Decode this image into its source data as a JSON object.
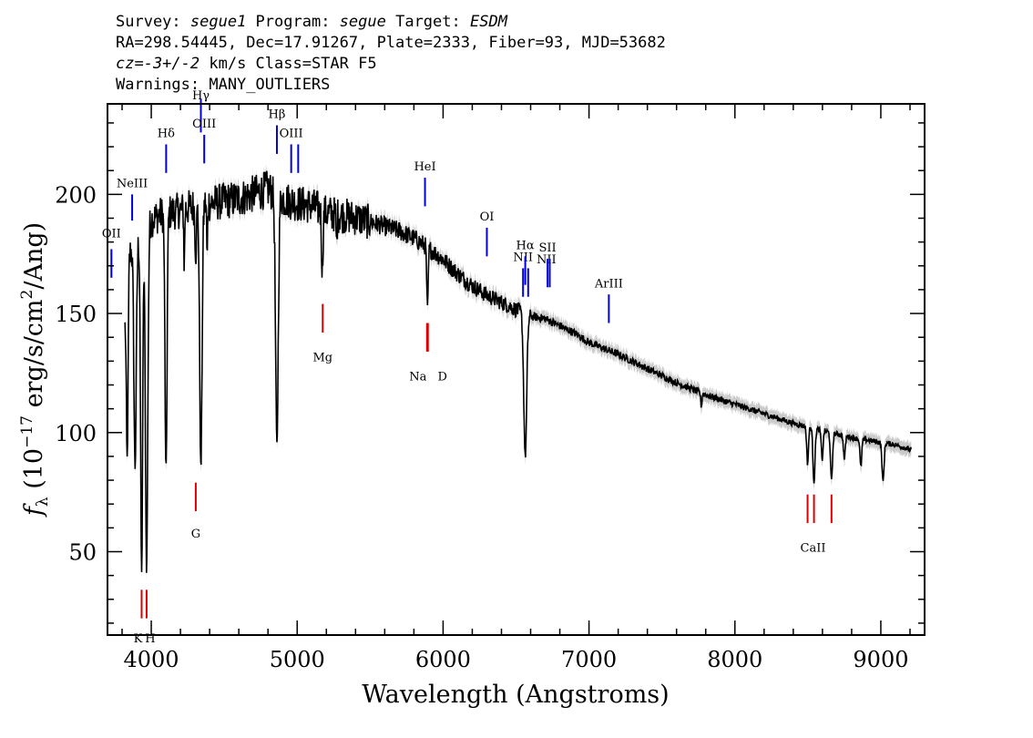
{
  "header": {
    "line1": {
      "survey_label": "Survey: ",
      "survey": "segue1",
      "program_label": " Program: ",
      "program": "segue",
      "target_label": " Target: ",
      "target": "ESDM"
    },
    "line2": "RA=298.54445, Dec=17.91267, Plate=2333, Fiber=93, MJD=53682",
    "line3": {
      "cz": "cz=-3+/-2",
      "rest": " km/s Class=STAR F5"
    },
    "line4": "Warnings: MANY_OUTLIERS"
  },
  "chart_data": {
    "type": "line",
    "xlabel": "Wavelength (Angstroms)",
    "ylabel": "f_λ (10^-17 erg/s/cm²/Ang)",
    "ylabel_parts": {
      "f": "f",
      "lambda": "λ",
      "prefix": " (10",
      "exp1": "−17",
      "mid": " erg/s/cm",
      "exp2": "2",
      "suffix": "/Ang)"
    },
    "xlim": [
      3700,
      9300
    ],
    "ylim": [
      15,
      238
    ],
    "xticks": [
      4000,
      5000,
      6000,
      7000,
      8000,
      9000
    ],
    "yticks": [
      50,
      100,
      150,
      200
    ],
    "xtick_labels": [
      "4000",
      "5000",
      "6000",
      "7000",
      "8000",
      "9000"
    ],
    "ytick_labels": [
      "50",
      "100",
      "150",
      "200"
    ],
    "continuum": [
      [
        3820,
        148
      ],
      [
        3850,
        176
      ],
      [
        3900,
        180
      ],
      [
        3950,
        188
      ],
      [
        4000,
        190
      ],
      [
        4050,
        192
      ],
      [
        4100,
        193
      ],
      [
        4200,
        194
      ],
      [
        4300,
        196
      ],
      [
        4400,
        197
      ],
      [
        4500,
        198
      ],
      [
        4600,
        199
      ],
      [
        4700,
        201
      ],
      [
        4800,
        203
      ],
      [
        4900,
        199
      ],
      [
        5000,
        197
      ],
      [
        5100,
        196
      ],
      [
        5200,
        193
      ],
      [
        5300,
        192
      ],
      [
        5400,
        191
      ],
      [
        5500,
        189
      ],
      [
        5600,
        187
      ],
      [
        5700,
        185
      ],
      [
        5800,
        182
      ],
      [
        5900,
        178
      ],
      [
        6000,
        173
      ],
      [
        6100,
        167
      ],
      [
        6200,
        162
      ],
      [
        6300,
        158
      ],
      [
        6400,
        155
      ],
      [
        6500,
        152
      ],
      [
        6600,
        149
      ],
      [
        6700,
        148
      ],
      [
        6800,
        145
      ],
      [
        6900,
        142
      ],
      [
        7000,
        138
      ],
      [
        7200,
        133
      ],
      [
        7400,
        127
      ],
      [
        7600,
        121
      ],
      [
        7800,
        116
      ],
      [
        8000,
        112
      ],
      [
        8200,
        108
      ],
      [
        8400,
        104
      ],
      [
        8600,
        101
      ],
      [
        8800,
        98
      ],
      [
        9000,
        96
      ],
      [
        9100,
        95
      ],
      [
        9200,
        93
      ]
    ],
    "absorption_lines": [
      {
        "w": 3835,
        "depth": 0.45,
        "width": 6
      },
      {
        "w": 3889,
        "depth": 0.52,
        "width": 8
      },
      {
        "w": 3934,
        "depth": 0.78,
        "width": 7
      },
      {
        "w": 3968,
        "depth": 0.78,
        "width": 8
      },
      {
        "w": 4101,
        "depth": 0.57,
        "width": 7
      },
      {
        "w": 4226,
        "depth": 0.12,
        "width": 3
      },
      {
        "w": 4305,
        "depth": 0.1,
        "width": 5
      },
      {
        "w": 4340,
        "depth": 0.57,
        "width": 8
      },
      {
        "w": 4383,
        "depth": 0.12,
        "width": 3
      },
      {
        "w": 4861,
        "depth": 0.53,
        "width": 9
      },
      {
        "w": 5172,
        "depth": 0.13,
        "width": 5
      },
      {
        "w": 5270,
        "depth": 0.07,
        "width": 3
      },
      {
        "w": 5893,
        "depth": 0.15,
        "width": 5
      },
      {
        "w": 6563,
        "depth": 0.4,
        "width": 10
      },
      {
        "w": 7770,
        "depth": 0.05,
        "width": 4
      },
      {
        "w": 8498,
        "depth": 0.15,
        "width": 6
      },
      {
        "w": 8542,
        "depth": 0.22,
        "width": 7
      },
      {
        "w": 8598,
        "depth": 0.12,
        "width": 6
      },
      {
        "w": 8662,
        "depth": 0.2,
        "width": 7
      },
      {
        "w": 8750,
        "depth": 0.1,
        "width": 6
      },
      {
        "w": 8863,
        "depth": 0.12,
        "width": 6
      },
      {
        "w": 9015,
        "depth": 0.17,
        "width": 7
      }
    ],
    "emission_markers": [
      {
        "label": "OII",
        "w": 3727,
        "y1": 165,
        "y2": 177,
        "label_y": 182
      },
      {
        "label": "NeIII",
        "w": 3869,
        "y1": 189,
        "y2": 200,
        "label_y": 203
      },
      {
        "label": "Hδ",
        "w": 4102,
        "y1": 209,
        "y2": 221,
        "label_y": 224
      },
      {
        "label": "Hγ",
        "w": 4340,
        "y1": 226,
        "y2": 240,
        "label_y": 240
      },
      {
        "label": "OIII",
        "w": 4363,
        "y1": 213,
        "y2": 225,
        "label_y": 228
      },
      {
        "label": "Hβ",
        "w": 4861,
        "y1": 217,
        "y2": 229,
        "label_y": 232
      },
      {
        "label": "OIII",
        "w": 4959,
        "y1": 209,
        "y2": 221,
        "label_y": 224
      },
      {
        "label": "OIII2",
        "w": 5007,
        "y1": 209,
        "y2": 221,
        "label_y": 224,
        "hide_label": true
      },
      {
        "label": "HeI",
        "w": 5876,
        "y1": 195,
        "y2": 207,
        "label_y": 210
      },
      {
        "label": "OI",
        "w": 6300,
        "y1": 174,
        "y2": 186,
        "label_y": 189
      },
      {
        "label": "NII",
        "w": 6548,
        "y1": 157,
        "y2": 169,
        "label_y": 172
      },
      {
        "label": "Hα",
        "w": 6563,
        "y1": 162,
        "y2": 174,
        "label_y": 177
      },
      {
        "label": "NII",
        "w": 6583,
        "y1": 157,
        "y2": 169,
        "label_y": 171,
        "label_dx": 20
      },
      {
        "label": "SII",
        "w": 6716,
        "y1": 161,
        "y2": 173,
        "label_y": 176
      },
      {
        "label": "SII2",
        "w": 6731,
        "y1": 161,
        "y2": 173,
        "label_y": 176,
        "hide_label": true
      },
      {
        "label": "ArIII",
        "w": 7136,
        "y1": 146,
        "y2": 158,
        "label_y": 161
      }
    ],
    "absorption_markers": [
      {
        "label": "K",
        "w": 3934,
        "y1": 22,
        "y2": 34,
        "label_y": 12,
        "label_dx": -4
      },
      {
        "label": "H",
        "w": 3968,
        "y1": 22,
        "y2": 34,
        "label_y": 12,
        "label_dx": 4
      },
      {
        "label": "G",
        "w": 4305,
        "y1": 67,
        "y2": 79,
        "label_y": 56
      },
      {
        "label": "Mg",
        "w": 5175,
        "y1": 142,
        "y2": 154,
        "label_y": 130
      },
      {
        "label": "Na",
        "w": 5890,
        "y1": 134,
        "y2": 146,
        "label_y": 122,
        "label_dx": -10
      },
      {
        "label": "D",
        "w": 5896,
        "y1": 134,
        "y2": 146,
        "label_y": 122,
        "label_dx": 16
      },
      {
        "label": "CaII",
        "w": 8498,
        "y1": 62,
        "y2": 74,
        "label_y": 50,
        "label_dx": 6
      },
      {
        "label": "CaII2",
        "w": 8542,
        "y1": 62,
        "y2": 74,
        "label_y": 50,
        "hide_label": true
      },
      {
        "label": "CaII3",
        "w": 8662,
        "y1": 62,
        "y2": 74,
        "label_y": 50,
        "hide_label": true
      }
    ],
    "colors": {
      "spectrum": "#000000",
      "error_band": "#a0a0a0",
      "emission": "#0000dd",
      "absorption": "#dd0000"
    }
  }
}
